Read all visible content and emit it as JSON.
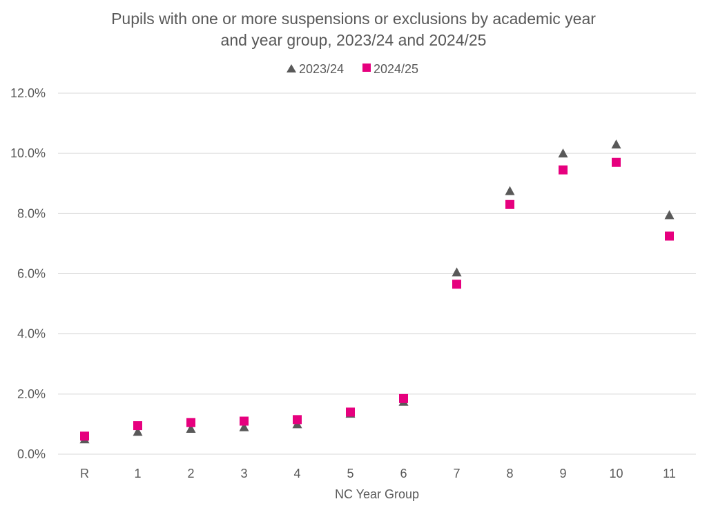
{
  "chart_data": {
    "type": "scatter",
    "title": "Pupils with one or more suspensions or exclusions by academic year and year group, 2023/24 and 2024/25",
    "title_lines": [
      "Pupils with one or more suspensions or exclusions by academic year",
      "and year group, 2023/24 and 2024/25"
    ],
    "xlabel": "NC Year Group",
    "ylabel": "",
    "categories": [
      "R",
      "1",
      "2",
      "3",
      "4",
      "5",
      "6",
      "7",
      "8",
      "9",
      "10",
      "11"
    ],
    "y_ticks": [
      "0.0%",
      "2.0%",
      "4.0%",
      "6.0%",
      "8.0%",
      "10.0%",
      "12.0%"
    ],
    "ylim": [
      0,
      12
    ],
    "y_unit": "%",
    "grid": "horizontal",
    "legend_position": "top",
    "series": [
      {
        "name": "2023/24",
        "marker": "triangle",
        "color": "#595959",
        "values": [
          0.5,
          0.75,
          0.85,
          0.9,
          1.0,
          1.35,
          1.75,
          6.05,
          8.75,
          10.0,
          10.3,
          7.95
        ]
      },
      {
        "name": "2024/25",
        "marker": "square",
        "color": "#e6007e",
        "values": [
          0.6,
          0.95,
          1.05,
          1.1,
          1.15,
          1.4,
          1.85,
          5.65,
          8.3,
          9.45,
          9.7,
          7.25
        ]
      }
    ]
  }
}
